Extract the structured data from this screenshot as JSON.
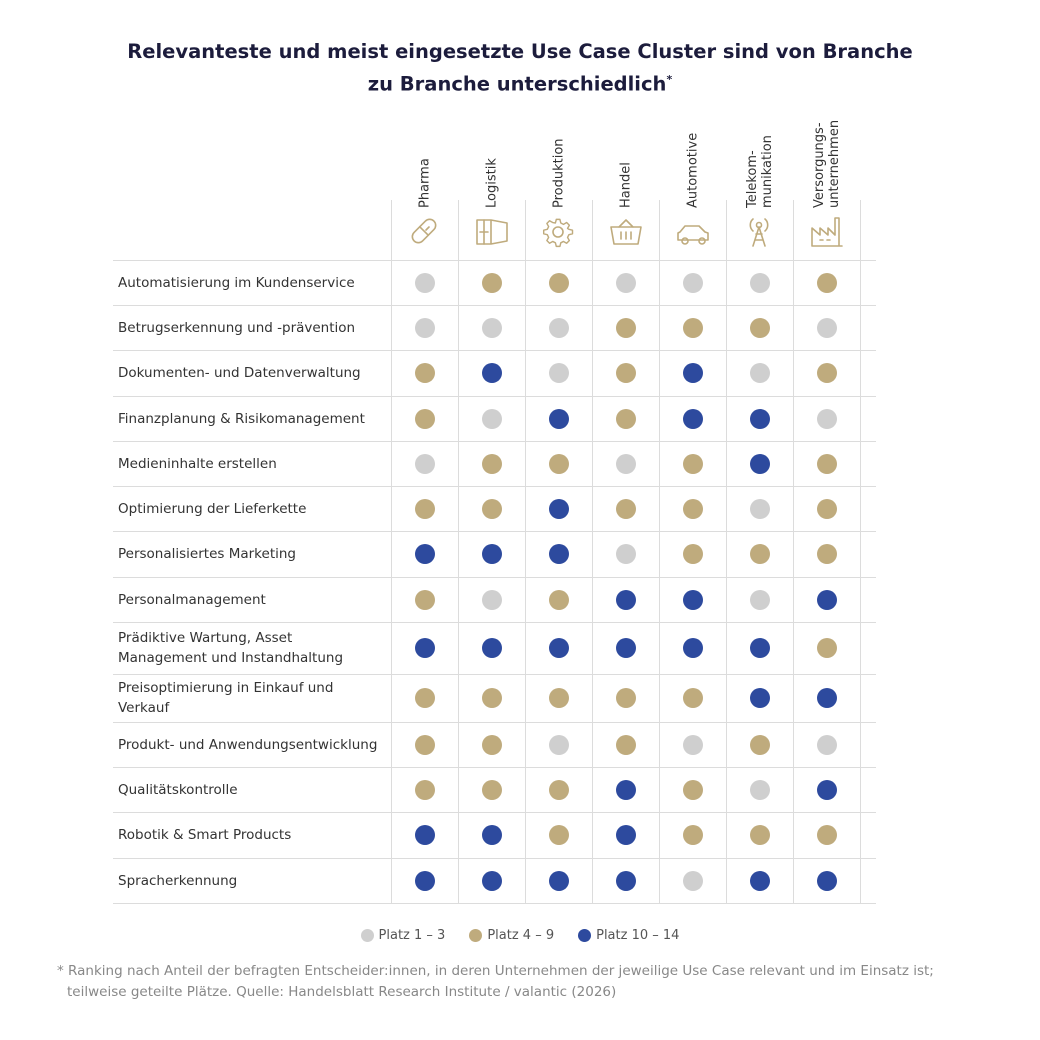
{
  "title_line1": "Relevanteste und meist eingesetzte Use Case Cluster sind von Branche",
  "title_line2": "zu Branche unterschiedlich",
  "title_mark": "*",
  "colors": {
    "platz_1_3": "#cfcfcf",
    "platz_4_9": "#bfab7d",
    "platz_10_14": "#2d4a9e",
    "icon": "#bfab7d",
    "title": "#1c1c3c"
  },
  "chart_data": {
    "type": "table",
    "columns": [
      {
        "label": "Pharma",
        "icon": "pill-icon"
      },
      {
        "label": "Logistik",
        "icon": "container-icon"
      },
      {
        "label": "Produktion",
        "icon": "gear-icon"
      },
      {
        "label": "Handel",
        "icon": "basket-icon"
      },
      {
        "label": "Automotive",
        "icon": "car-icon"
      },
      {
        "label": "Telekom-\nmunikation",
        "icon": "antenna-icon"
      },
      {
        "label": "Versorgungs-\nunternehmen",
        "icon": "factory-icon"
      }
    ],
    "legend": [
      {
        "key": 1,
        "label": "Platz 1 – 3"
      },
      {
        "key": 2,
        "label": "Platz 4 – 9"
      },
      {
        "key": 3,
        "label": "Platz 10 – 14"
      }
    ],
    "rows": [
      {
        "label": "Automatisierung im Kundenservice",
        "values": [
          1,
          2,
          2,
          1,
          1,
          1,
          2
        ]
      },
      {
        "label": "Betrugserkennung und -prävention",
        "values": [
          1,
          1,
          1,
          2,
          2,
          2,
          1
        ]
      },
      {
        "label": "Dokumenten- und Datenverwaltung",
        "values": [
          2,
          3,
          1,
          2,
          3,
          1,
          2
        ]
      },
      {
        "label": "Finanzplanung & Risikomanagement",
        "values": [
          2,
          1,
          3,
          2,
          3,
          3,
          1
        ]
      },
      {
        "label": "Medieninhalte erstellen",
        "values": [
          1,
          2,
          2,
          1,
          2,
          3,
          2
        ]
      },
      {
        "label": "Optimierung der Lieferkette",
        "values": [
          2,
          2,
          3,
          2,
          2,
          1,
          2
        ]
      },
      {
        "label": "Personalisiertes Marketing",
        "values": [
          3,
          3,
          3,
          1,
          2,
          2,
          2
        ]
      },
      {
        "label": "Personalmanagement",
        "values": [
          2,
          1,
          2,
          3,
          3,
          1,
          3
        ]
      },
      {
        "label": "Prädiktive Wartung, Asset\nManagement und Instandhaltung",
        "values": [
          3,
          3,
          3,
          3,
          3,
          3,
          2
        ]
      },
      {
        "label": "Preisoptimierung in Einkauf und Verkauf",
        "values": [
          2,
          2,
          2,
          2,
          2,
          3,
          3
        ]
      },
      {
        "label": "Produkt- und Anwendungsentwicklung",
        "values": [
          2,
          2,
          1,
          2,
          1,
          2,
          1
        ]
      },
      {
        "label": "Qualitätskontrolle",
        "values": [
          2,
          2,
          2,
          3,
          2,
          1,
          3
        ]
      },
      {
        "label": "Robotik & Smart Products",
        "values": [
          3,
          3,
          2,
          3,
          2,
          2,
          2
        ]
      },
      {
        "label": "Spracherkennung",
        "values": [
          3,
          3,
          3,
          3,
          1,
          3,
          3
        ]
      }
    ]
  },
  "footnote_line1": "* Ranking nach Anteil der befragten Entscheider:innen, in deren Unternehmen der jeweilige Use Case relevant und im Einsatz ist;",
  "footnote_line2": "teilweise geteilte Plätze. Quelle: Handelsblatt Research Institute / valantic (2026)"
}
